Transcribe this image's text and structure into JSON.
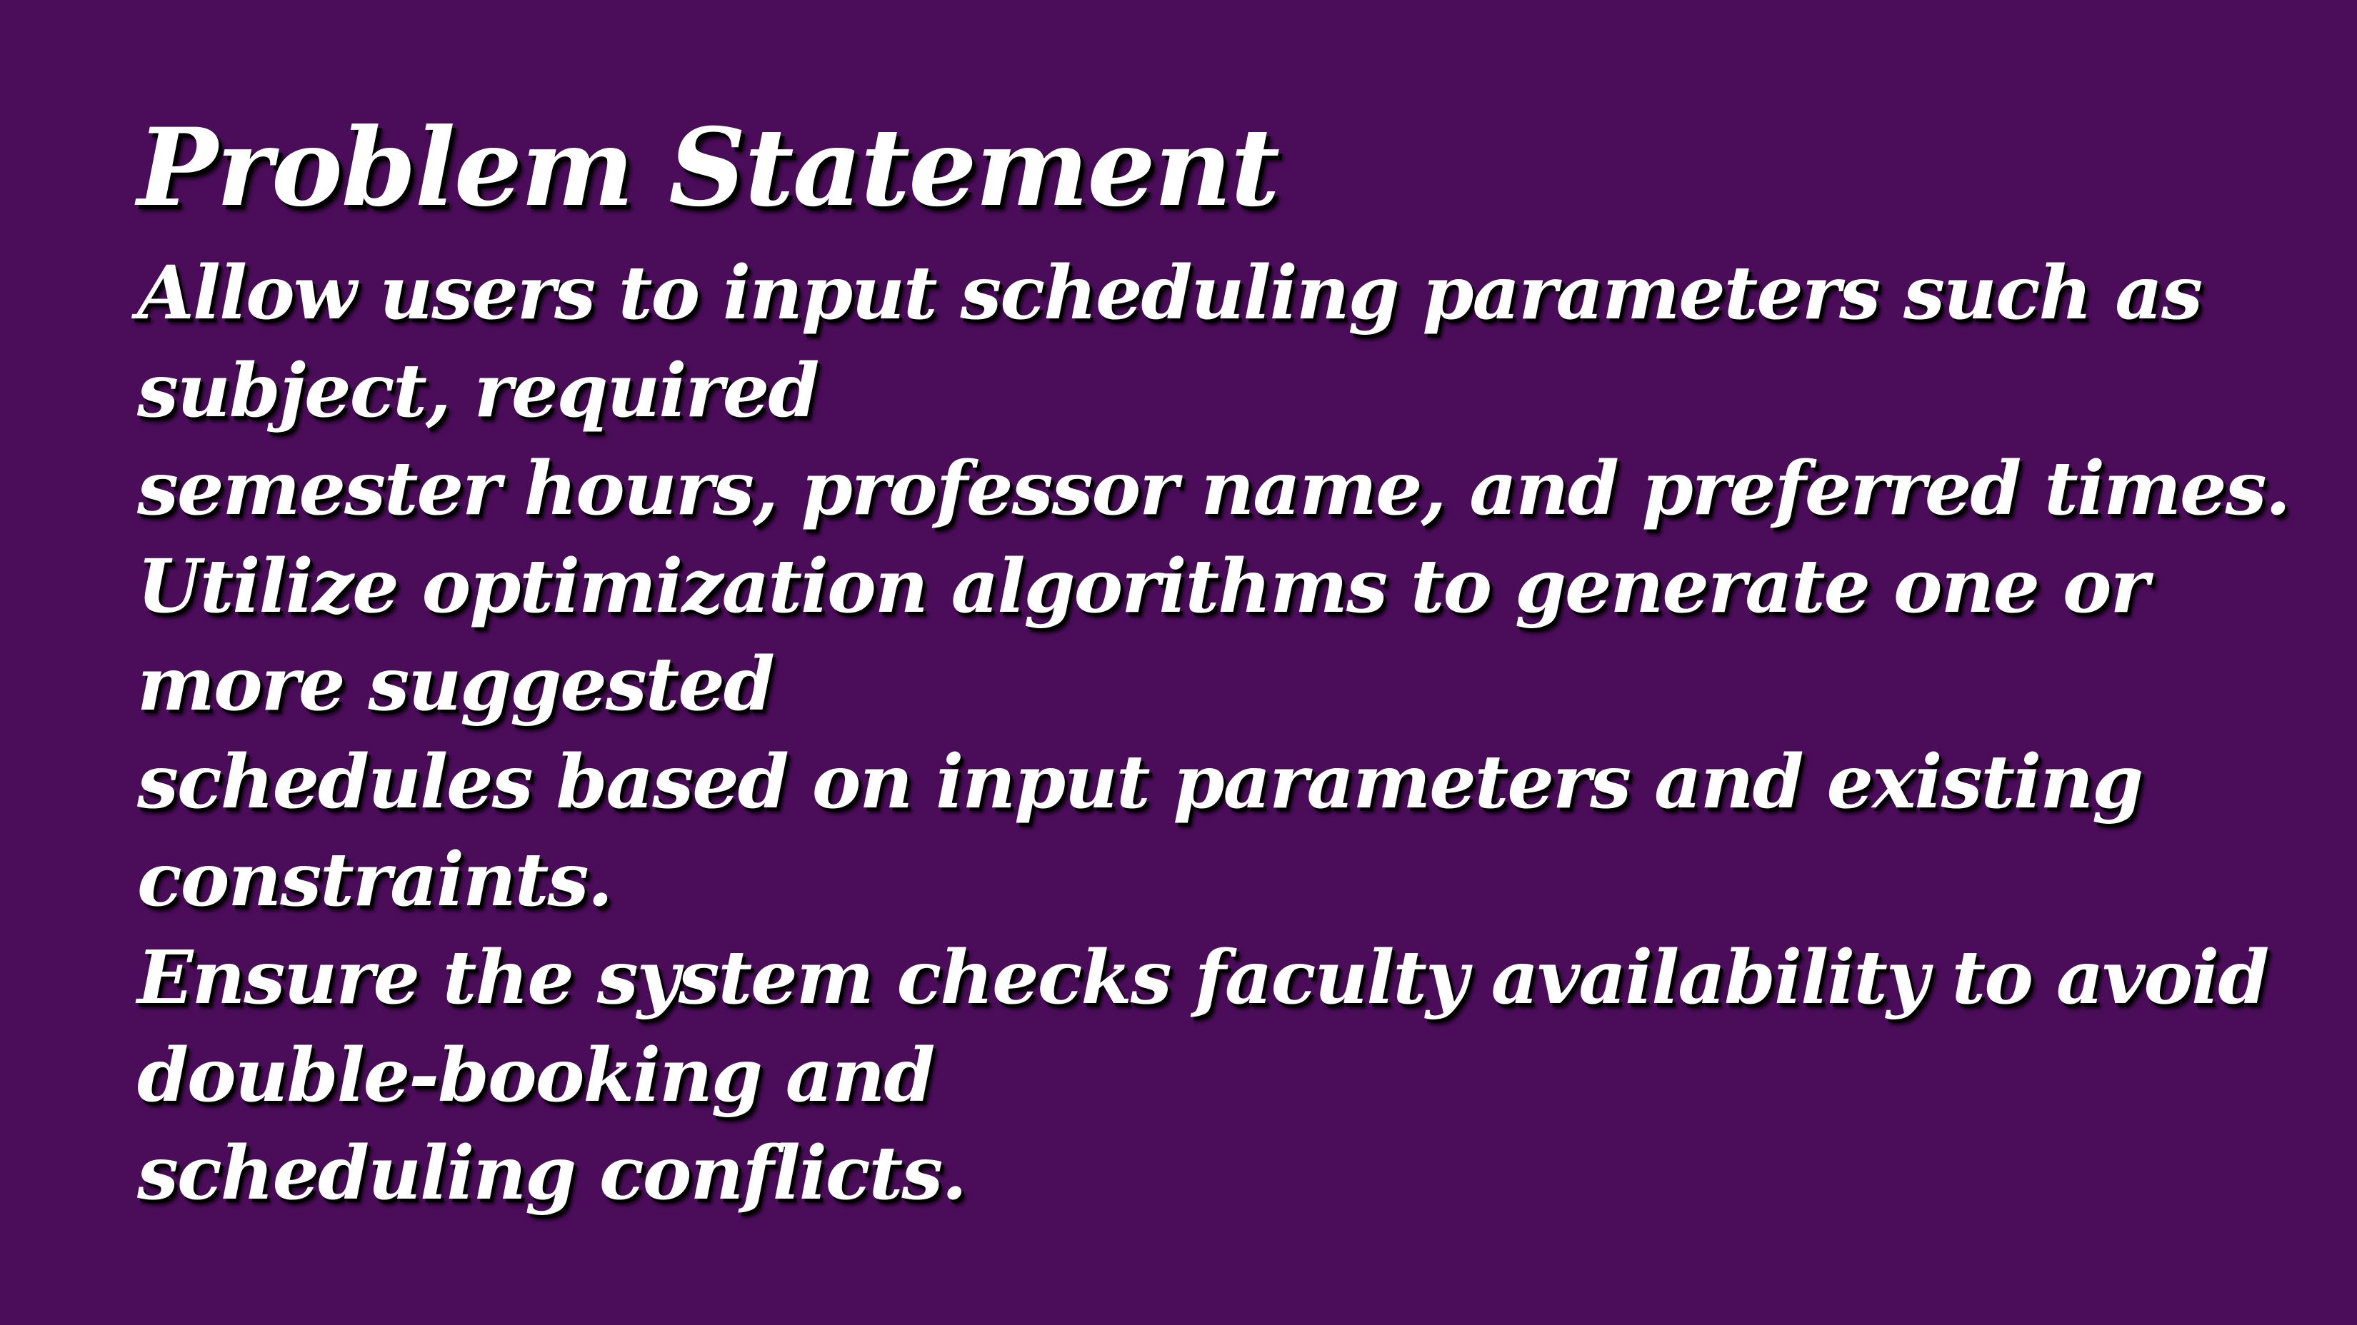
{
  "slide": {
    "background_color": "#4b0d5a",
    "text_color": "#ffffff",
    "title": "Problem Statement",
    "body_lines": [
      "Allow users to input scheduling parameters such as",
      "subject, required",
      "semester hours, professor name, and preferred times.",
      "Utilize optimization algorithms to generate one or",
      "more suggested",
      "schedules based on input parameters and existing",
      "constraints.",
      "Ensure the system checks faculty availability to avoid",
      "double-booking and",
      "scheduling conflicts."
    ]
  }
}
